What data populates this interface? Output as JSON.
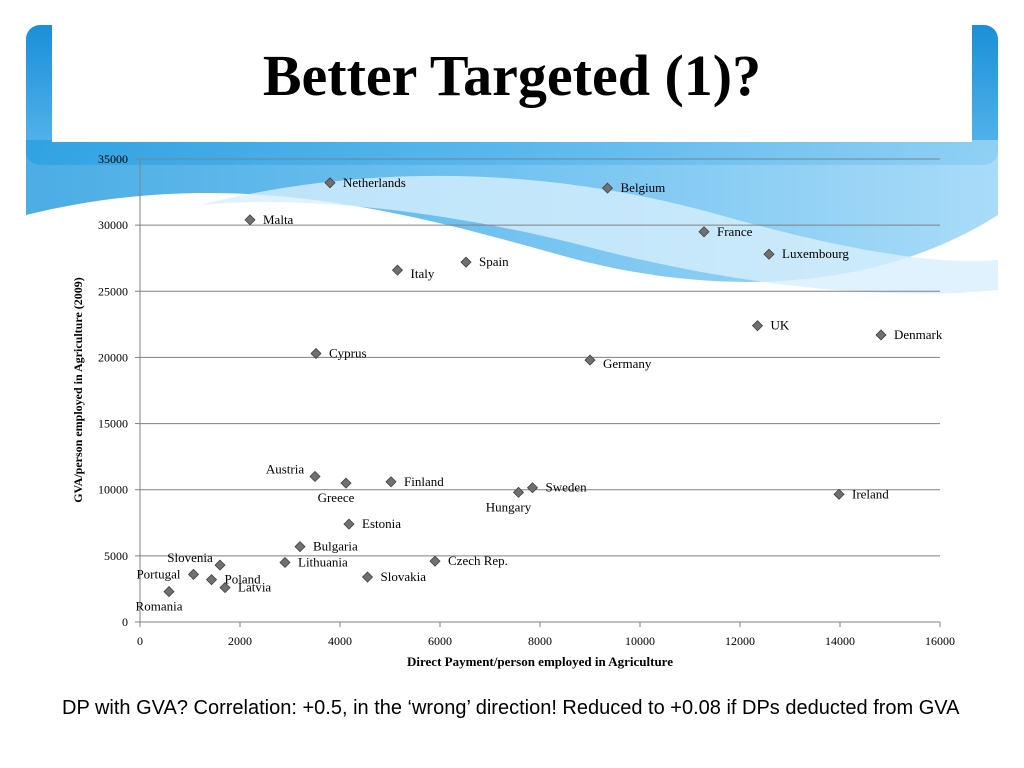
{
  "slide": {
    "title": "Better Targeted (1)?",
    "caption": "DP with GVA? Correlation: +0.5, in the ‘wrong’ direction!  Reduced to +0.08 if DPs deducted from GVA"
  },
  "colors": {
    "accent_blue": "#1e96dc",
    "light_blue": "#bfe6fb",
    "marker": "#707070",
    "gridline": "#808080"
  },
  "chart_data": {
    "type": "scatter",
    "title": "",
    "xlabel": "Direct Payment/person employed in Agriculture",
    "ylabel": "GVA/person employed in Agriculture (2009)",
    "xlim": [
      0,
      16000
    ],
    "ylim": [
      0,
      35000
    ],
    "xticks": [
      0,
      2000,
      4000,
      6000,
      8000,
      10000,
      12000,
      14000,
      16000
    ],
    "yticks": [
      0,
      5000,
      10000,
      15000,
      20000,
      25000,
      30000,
      35000
    ],
    "grid": "horizontal",
    "legend": "none",
    "points": [
      {
        "label": "Netherlands",
        "x": 3800,
        "y": 33200,
        "label_pos": "right"
      },
      {
        "label": "Belgium",
        "x": 9350,
        "y": 32800,
        "label_pos": "right"
      },
      {
        "label": "Malta",
        "x": 2200,
        "y": 30400,
        "label_pos": "right"
      },
      {
        "label": "France",
        "x": 11280,
        "y": 29500,
        "label_pos": "right"
      },
      {
        "label": "Luxembourg",
        "x": 12580,
        "y": 27800,
        "label_pos": "right"
      },
      {
        "label": "Spain",
        "x": 6520,
        "y": 27200,
        "label_pos": "right"
      },
      {
        "label": "Italy",
        "x": 5150,
        "y": 26600,
        "label_pos": "right-below"
      },
      {
        "label": "UK",
        "x": 12350,
        "y": 22400,
        "label_pos": "right"
      },
      {
        "label": "Denmark",
        "x": 14820,
        "y": 21700,
        "label_pos": "right"
      },
      {
        "label": "Cyprus",
        "x": 3520,
        "y": 20300,
        "label_pos": "right"
      },
      {
        "label": "Germany",
        "x": 9000,
        "y": 19800,
        "label_pos": "right-below"
      },
      {
        "label": "Austria",
        "x": 3500,
        "y": 11000,
        "label_pos": "left-above"
      },
      {
        "label": "Greece",
        "x": 4120,
        "y": 10500,
        "label_pos": "below-left"
      },
      {
        "label": "Finland",
        "x": 5020,
        "y": 10600,
        "label_pos": "right"
      },
      {
        "label": "Sweden",
        "x": 7850,
        "y": 10150,
        "label_pos": "right"
      },
      {
        "label": "Hungary",
        "x": 7570,
        "y": 9800,
        "label_pos": "below-left"
      },
      {
        "label": "Ireland",
        "x": 13980,
        "y": 9650,
        "label_pos": "right"
      },
      {
        "label": "Estonia",
        "x": 4180,
        "y": 7400,
        "label_pos": "right"
      },
      {
        "label": "Bulgaria",
        "x": 3200,
        "y": 5700,
        "label_pos": "right"
      },
      {
        "label": "Slovenia",
        "x": 1600,
        "y": 4300,
        "label_pos": "left-above"
      },
      {
        "label": "Lithuania",
        "x": 2900,
        "y": 4500,
        "label_pos": "right"
      },
      {
        "label": "Czech Rep.",
        "x": 5900,
        "y": 4600,
        "label_pos": "right"
      },
      {
        "label": "Portugal",
        "x": 1070,
        "y": 3600,
        "label_pos": "left"
      },
      {
        "label": "Poland",
        "x": 1430,
        "y": 3200,
        "label_pos": "right"
      },
      {
        "label": "Slovakia",
        "x": 4550,
        "y": 3400,
        "label_pos": "right"
      },
      {
        "label": "Latvia",
        "x": 1700,
        "y": 2600,
        "label_pos": "right"
      },
      {
        "label": "Romania",
        "x": 580,
        "y": 2300,
        "label_pos": "below-left"
      }
    ]
  }
}
